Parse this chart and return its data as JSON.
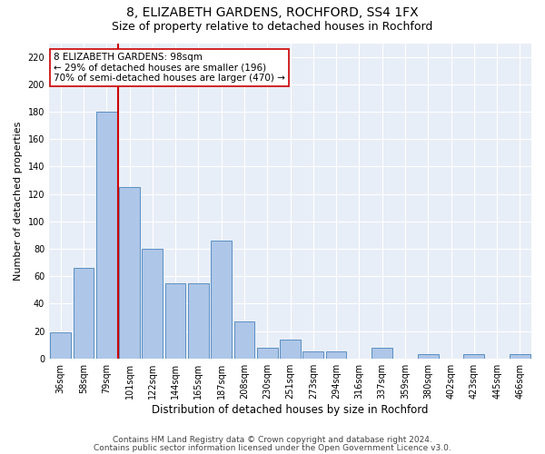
{
  "title1": "8, ELIZABETH GARDENS, ROCHFORD, SS4 1FX",
  "title2": "Size of property relative to detached houses in Rochford",
  "xlabel": "Distribution of detached houses by size in Rochford",
  "ylabel": "Number of detached properties",
  "bar_labels": [
    "36sqm",
    "58sqm",
    "79sqm",
    "101sqm",
    "122sqm",
    "144sqm",
    "165sqm",
    "187sqm",
    "208sqm",
    "230sqm",
    "251sqm",
    "273sqm",
    "294sqm",
    "316sqm",
    "337sqm",
    "359sqm",
    "380sqm",
    "402sqm",
    "423sqm",
    "445sqm",
    "466sqm"
  ],
  "bar_values": [
    19,
    66,
    180,
    125,
    80,
    55,
    55,
    86,
    27,
    8,
    14,
    5,
    5,
    0,
    8,
    0,
    3,
    0,
    3,
    0,
    3
  ],
  "bar_color": "#aec6e8",
  "bar_edge_color": "#5a8fc2",
  "vline_x_index": 3,
  "vline_color": "#cc0000",
  "annotation_text": "8 ELIZABETH GARDENS: 98sqm\n← 29% of detached houses are smaller (196)\n70% of semi-detached houses are larger (470) →",
  "annotation_box_color": "#ffffff",
  "annotation_box_edge": "#cc0000",
  "ylim": [
    0,
    230
  ],
  "yticks": [
    0,
    20,
    40,
    60,
    80,
    100,
    120,
    140,
    160,
    180,
    200,
    220
  ],
  "footer1": "Contains HM Land Registry data © Crown copyright and database right 2024.",
  "footer2": "Contains public sector information licensed under the Open Government Licence v3.0.",
  "bg_color": "#e8eef7",
  "fig_bg_color": "#ffffff",
  "title1_fontsize": 10,
  "title2_fontsize": 9,
  "xlabel_fontsize": 8.5,
  "ylabel_fontsize": 8,
  "tick_fontsize": 7,
  "footer_fontsize": 6.5,
  "annot_fontsize": 7.5
}
